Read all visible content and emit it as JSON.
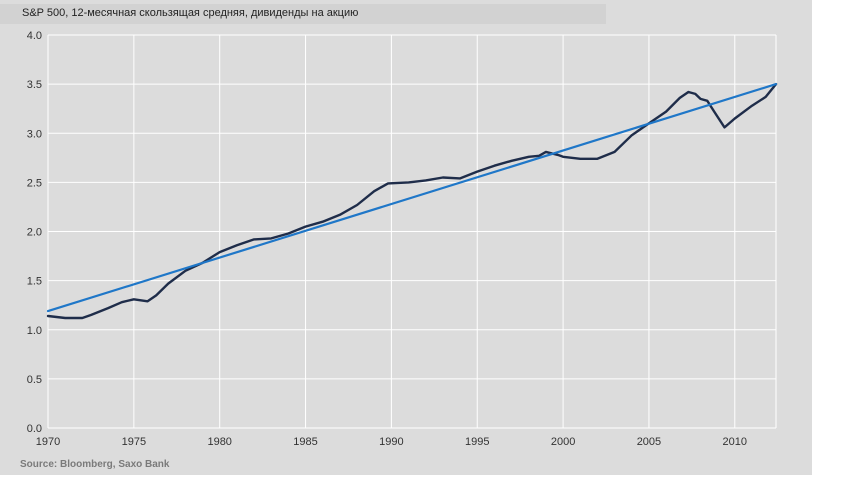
{
  "colors": {
    "background": "#dcdcdc",
    "grid": "#ffffff",
    "dividend_line": "#1f2d4a",
    "trend_line": "#1f77c8"
  },
  "chart_data": {
    "type": "line",
    "title": "S&P 500, 12-месячная скользящая средняя, дивиденды на акцию",
    "source": "Source: Bloomberg, Saxo Bank",
    "xlim": [
      1970,
      2012.4
    ],
    "ylim": [
      0.0,
      4.0
    ],
    "x_ticks": [
      1970,
      1975,
      1980,
      1985,
      1990,
      1995,
      2000,
      2005,
      2010
    ],
    "y_ticks": [
      0.0,
      0.5,
      1.0,
      1.5,
      2.0,
      2.5,
      3.0,
      3.5,
      4.0
    ],
    "y_tick_labels": [
      "0.0",
      "0.5",
      "1.0",
      "1.5",
      "2.0",
      "2.5",
      "3.0",
      "3.5",
      "4.0"
    ],
    "grid": true,
    "legend": "none",
    "series": [
      {
        "color": "#1f2d4a",
        "x": [
          1970.0,
          1971.0,
          1972.0,
          1972.5,
          1973.5,
          1974.3,
          1975.0,
          1975.8,
          1976.3,
          1977.0,
          1978.0,
          1979.0,
          1980.0,
          1981.0,
          1982.0,
          1983.0,
          1984.0,
          1985.0,
          1986.0,
          1987.0,
          1988.0,
          1989.0,
          1989.8,
          1991.0,
          1992.0,
          1993.0,
          1994.0,
          1995.0,
          1996.0,
          1997.0,
          1998.0,
          1998.6,
          1999.0,
          1999.7,
          2000.0,
          2001.0,
          2002.0,
          2003.0,
          2004.0,
          2005.0,
          2006.0,
          2006.8,
          2007.3,
          2007.7,
          2008.0,
          2008.4,
          2008.8,
          2009.4,
          2010.0,
          2011.0,
          2011.8,
          2012.4
        ],
        "y": [
          1.14,
          1.12,
          1.12,
          1.15,
          1.22,
          1.28,
          1.31,
          1.29,
          1.35,
          1.47,
          1.6,
          1.68,
          1.79,
          1.86,
          1.92,
          1.93,
          1.98,
          2.05,
          2.1,
          2.17,
          2.27,
          2.41,
          2.49,
          2.5,
          2.52,
          2.55,
          2.54,
          2.61,
          2.67,
          2.72,
          2.76,
          2.77,
          2.81,
          2.78,
          2.76,
          2.74,
          2.74,
          2.81,
          2.98,
          3.1,
          3.22,
          3.36,
          3.42,
          3.4,
          3.35,
          3.33,
          3.22,
          3.06,
          3.15,
          3.28,
          3.37,
          3.5
        ]
      },
      {
        "color": "#1f77c8",
        "x": [
          1970.0,
          2012.4
        ],
        "y": [
          1.19,
          3.5
        ]
      }
    ]
  }
}
